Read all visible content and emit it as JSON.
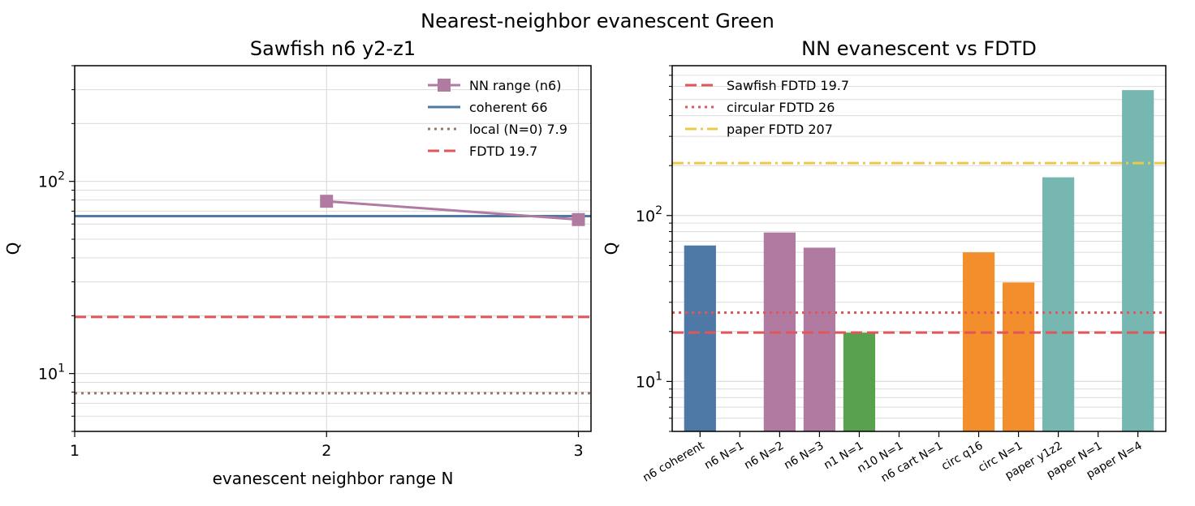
{
  "figure": {
    "suptitle": "Nearest-neighbor evanescent Green"
  },
  "chart_data": [
    {
      "type": "line",
      "title": "Sawfish n6 y2-z1",
      "xlabel": "evanescent neighbor range N",
      "ylabel": "Q",
      "xscale": "linear",
      "yscale": "log",
      "xlim": [
        1,
        3.05
      ],
      "ylim": [
        5,
        400
      ],
      "xticks": [
        "1",
        "2",
        "3"
      ],
      "grid": true,
      "legend_position": "upper right",
      "series": [
        {
          "name": "NN range (n6)",
          "x": [
            2,
            3
          ],
          "y": [
            78.8,
            63.3
          ],
          "color": "#b07aa1",
          "marker": "square"
        }
      ],
      "hlines": [
        {
          "name": "coherent 66",
          "y": 66,
          "color": "#4e79a7",
          "style": "solid"
        },
        {
          "name": "local (N=0) 7.9",
          "y": 7.9,
          "color": "#9c755f",
          "style": "dotted"
        },
        {
          "name": "FDTD 19.7",
          "y": 19.7,
          "color": "#e15759",
          "style": "dashed"
        }
      ]
    },
    {
      "type": "bar",
      "title": "NN evanescent vs FDTD",
      "xlabel": "",
      "ylabel": "Q",
      "yscale": "log",
      "ylim": [
        5,
        800
      ],
      "grid": true,
      "legend_position": "upper left",
      "categories": [
        "n6 coherent",
        "n6 N=1",
        "n6 N=2",
        "n6 N=3",
        "n1 N=1",
        "n10 N=1",
        "n6 cart N=1",
        "circ q16",
        "circ N=1",
        "paper y1z2",
        "paper N=1",
        "paper N=4"
      ],
      "values": [
        66,
        null,
        79,
        64,
        19.7,
        null,
        null,
        60,
        39.5,
        170,
        null,
        570
      ],
      "bar_colors": [
        "#4e79a7",
        "#b07aa1",
        "#b07aa1",
        "#b07aa1",
        "#59a14f",
        "#59a14f",
        "#59a14f",
        "#f28e2b",
        "#f28e2b",
        "#76b7b2",
        "#76b7b2",
        "#76b7b2"
      ],
      "hlines": [
        {
          "name": "Sawfish FDTD 19.7",
          "y": 19.7,
          "color": "#e15759",
          "style": "dashed"
        },
        {
          "name": "circular FDTD 26",
          "y": 26,
          "color": "#e15759",
          "style": "dotted"
        },
        {
          "name": "paper FDTD 207",
          "y": 207,
          "color": "#edc948",
          "style": "dashdot"
        }
      ]
    }
  ]
}
